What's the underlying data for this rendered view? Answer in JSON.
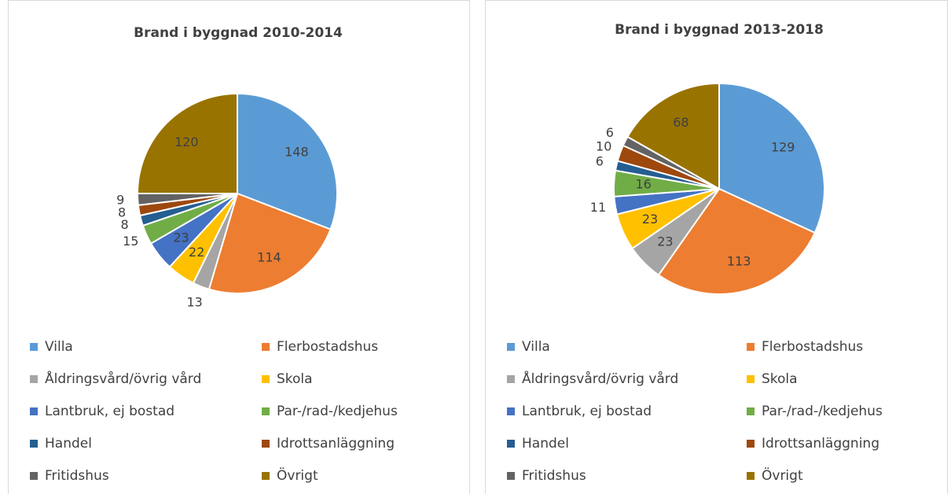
{
  "chart_data": [
    {
      "type": "pie",
      "title": "Brand i byggnad 2010-2014",
      "categories": [
        "Villa",
        "Flerbostadshus",
        "Åldringsvård/övrig vård",
        "Skola",
        "Lantbruk, ej bostad",
        "Par-/rad-/kedjehus",
        "Handel",
        "Idrottsanläggning",
        "Fritidshus",
        "Övrigt"
      ],
      "values": [
        148,
        114,
        13,
        22,
        23,
        15,
        8,
        8,
        9,
        120
      ],
      "colors": [
        "#5b9bd5",
        "#ed7d31",
        "#a5a5a5",
        "#ffc000",
        "#4472c4",
        "#70ad47",
        "#255e91",
        "#9e480e",
        "#636363",
        "#997300"
      ]
    },
    {
      "type": "pie",
      "title": "Brand i byggnad 2013-2018",
      "categories": [
        "Villa",
        "Flerbostadshus",
        "Åldringsvård/övrig vård",
        "Skola",
        "Lantbruk, ej bostad",
        "Par-/rad-/kedjehus",
        "Handel",
        "Idrottsanläggning",
        "Fritidshus",
        "Övrigt"
      ],
      "values": [
        129,
        113,
        23,
        23,
        11,
        16,
        6,
        10,
        6,
        68
      ],
      "colors": [
        "#5b9bd5",
        "#ed7d31",
        "#a5a5a5",
        "#ffc000",
        "#4472c4",
        "#70ad47",
        "#255e91",
        "#9e480e",
        "#636363",
        "#997300"
      ]
    }
  ]
}
